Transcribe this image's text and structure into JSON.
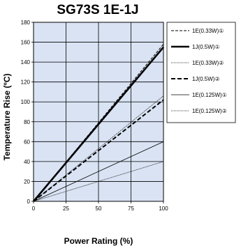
{
  "chart_data": {
    "type": "line",
    "title": "SG73S 1E-1J",
    "xlabel": "Power Rating (%)",
    "ylabel": "Temperature Rise (ºC)",
    "xlim": [
      0,
      100
    ],
    "ylim": [
      0,
      180
    ],
    "x_ticks": [
      0,
      25,
      50,
      75,
      100
    ],
    "y_ticks": [
      0,
      20,
      40,
      60,
      80,
      100,
      120,
      140,
      160,
      180
    ],
    "grid": true,
    "plot_background": "#d9e3f3",
    "legend_position": "right",
    "series": [
      {
        "name": "1E(0.33W)①",
        "style": "dashed-thin",
        "color": "#000000",
        "x": [
          0,
          100
        ],
        "y": [
          0,
          158
        ]
      },
      {
        "name": "1J(0.5W)①",
        "style": "solid-thick",
        "color": "#000000",
        "x": [
          0,
          100
        ],
        "y": [
          0,
          155
        ]
      },
      {
        "name": "1E(0.33W)②",
        "style": "dotted-thin",
        "color": "#000000",
        "x": [
          0,
          100
        ],
        "y": [
          0,
          106
        ]
      },
      {
        "name": "1J(0.5W)②",
        "style": "dashed-thick",
        "color": "#000000",
        "x": [
          0,
          100
        ],
        "y": [
          0,
          102
        ]
      },
      {
        "name": "1E(0.125W)①",
        "style": "solid-thin",
        "color": "#000000",
        "x": [
          0,
          100
        ],
        "y": [
          0,
          60
        ]
      },
      {
        "name": "1E(0.125W)②",
        "style": "dotted-thin",
        "color": "#000000",
        "x": [
          0,
          100
        ],
        "y": [
          0,
          40
        ]
      }
    ]
  }
}
